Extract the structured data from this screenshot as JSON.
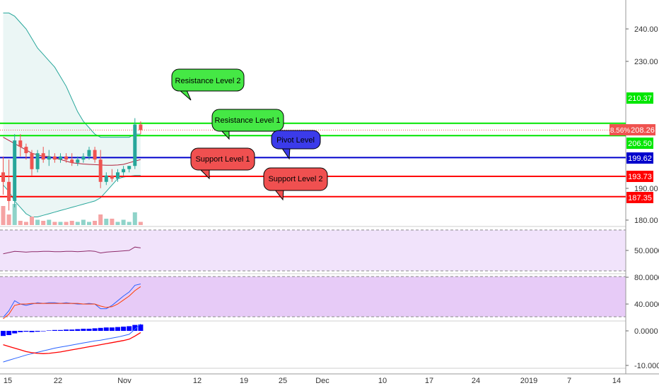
{
  "colors": {
    "up": "#26a69a",
    "down": "#ef5350",
    "resistance": "#00e600",
    "pivot": "#0000cc",
    "support": "#ff0000",
    "band_line": "#26a69a",
    "band_mid": "#b0203a",
    "rsi_fill": "#f1e3fb",
    "stoch_fill": "#e7cbf7",
    "macd_hist": "#0000ff"
  },
  "price_axis": {
    "ticks": [
      "240.00",
      "230.00",
      "190.00",
      "180.00"
    ]
  },
  "level_badges": {
    "r2": "210.37",
    "r1": "206.50",
    "pivot": "199.62",
    "s1": "193.73",
    "s2": "187.35",
    "last_price": "208.26",
    "last_change": "8.56%"
  },
  "callouts": {
    "r2": "Resistance Level 2",
    "r1": "Resistance Level 1",
    "pivot": "Pivot Level",
    "s1": "Support Level 1",
    "s2": "Support Level 2"
  },
  "rsi_axis": {
    "ticks": [
      "50.0000"
    ]
  },
  "stoch_axis": {
    "ticks": [
      "80.0000",
      "40.0000"
    ]
  },
  "macd_axis": {
    "ticks": [
      "0.0000",
      "-10.0000"
    ]
  },
  "time_axis": {
    "labels": [
      "15",
      "22",
      "Nov",
      "12",
      "19",
      "25",
      "Dec",
      "10",
      "17",
      "24",
      "2019",
      "7",
      "14"
    ]
  },
  "chart_data": {
    "type": "candlestick",
    "candles": [
      [
        195,
        200,
        188,
        192
      ],
      [
        192,
        199,
        183,
        186
      ],
      [
        186,
        207,
        184,
        205
      ],
      [
        205,
        207,
        200,
        203
      ],
      [
        203,
        204,
        199,
        201
      ],
      [
        201,
        202,
        194,
        196
      ],
      [
        196,
        202,
        195,
        201
      ],
      [
        201,
        203,
        198,
        199
      ],
      [
        199,
        202,
        197,
        200
      ],
      [
        200,
        201,
        198,
        199
      ],
      [
        199,
        201,
        198,
        200
      ],
      [
        200,
        201,
        198,
        199
      ],
      [
        199,
        201,
        197,
        198
      ],
      [
        198,
        200,
        197,
        199
      ],
      [
        199,
        201,
        198,
        200
      ],
      [
        200,
        203,
        199,
        202
      ],
      [
        202,
        203,
        198,
        199
      ],
      [
        199,
        202,
        190,
        192
      ],
      [
        192,
        195,
        191,
        194
      ],
      [
        194,
        196,
        192,
        193
      ],
      [
        193,
        196,
        192,
        195
      ],
      [
        195,
        197,
        194,
        196
      ],
      [
        196,
        197,
        195,
        197
      ],
      [
        197,
        212,
        196,
        210
      ],
      [
        210,
        211,
        207,
        208.26
      ]
    ],
    "volume": [
      0.9,
      0.5,
      1.0,
      0.2,
      0.15,
      0.4,
      0.25,
      0.2,
      0.25,
      0.15,
      0.15,
      0.15,
      0.2,
      0.15,
      0.25,
      0.15,
      0.2,
      0.5,
      0.3,
      0.3,
      0.15,
      0.25,
      0.15,
      0.6,
      0.15
    ],
    "bb_upper": [
      245,
      245,
      244,
      242,
      240,
      237,
      234,
      232,
      230,
      228,
      225,
      222,
      218,
      214,
      211,
      209,
      207,
      206,
      206,
      206,
      206,
      206,
      206,
      207,
      207
    ],
    "bb_mid": [
      206,
      205,
      204,
      203,
      202,
      201,
      200.5,
      200,
      200,
      199.5,
      199,
      198.5,
      198,
      197.8,
      197.6,
      197.5,
      197.4,
      197.3,
      197.2,
      197.2,
      197.3,
      197.5,
      198,
      198.5,
      199
    ],
    "bb_lower": [
      191,
      189,
      186,
      184,
      182,
      181,
      181,
      181.5,
      182,
      182.5,
      183,
      183.5,
      184,
      184.5,
      185,
      185.5,
      186,
      187,
      189,
      191,
      193,
      193.5,
      193.8,
      194,
      194
    ],
    "levels": {
      "r2": 210.37,
      "r1": 206.5,
      "pivot": 199.62,
      "s1": 193.73,
      "s2": 187.35
    },
    "rsi": [
      42,
      45,
      48,
      47,
      46,
      47,
      47,
      48,
      48,
      47,
      47,
      48,
      48,
      47,
      48,
      49,
      48,
      44,
      46,
      47,
      48,
      49,
      50,
      58,
      56
    ],
    "stoch_k": [
      20,
      30,
      45,
      40,
      38,
      40,
      42,
      41,
      42,
      42,
      41,
      42,
      41,
      40,
      40,
      41,
      40,
      33,
      33,
      38,
      45,
      52,
      58,
      68,
      70
    ],
    "stoch_d": [
      18,
      25,
      38,
      40,
      40,
      41,
      41,
      41,
      41,
      41,
      41,
      41,
      41,
      41,
      40,
      40,
      40,
      37,
      35,
      36,
      40,
      46,
      52,
      60,
      66
    ],
    "macd_hist": [
      -1.2,
      -1.0,
      -0.6,
      -0.3,
      -0.2,
      -0.3,
      -0.2,
      -0.1,
      0.1,
      0.2,
      0.2,
      0.3,
      0.3,
      0.4,
      0.5,
      0.5,
      0.6,
      0.7,
      0.8,
      0.8,
      0.9,
      1.0,
      1.1,
      1.4,
      1.5
    ],
    "macd_line": [
      -9,
      -8.5,
      -8,
      -7.5,
      -7,
      -6.6,
      -6.2,
      -5.8,
      -5.4,
      -5,
      -4.7,
      -4.4,
      -4.1,
      -3.8,
      -3.5,
      -3.2,
      -2.9,
      -2.7,
      -2.4,
      -2.1,
      -1.8,
      -1.4,
      -1,
      0.5,
      2
    ],
    "macd_signal": [
      -4,
      -4.5,
      -5,
      -5.5,
      -6,
      -6.3,
      -6.5,
      -6.6,
      -6.5,
      -6.3,
      -6.1,
      -5.8,
      -5.5,
      -5.2,
      -4.9,
      -4.6,
      -4.3,
      -4,
      -3.7,
      -3.4,
      -3.1,
      -2.8,
      -2.4,
      -1.5,
      -0.5
    ]
  }
}
